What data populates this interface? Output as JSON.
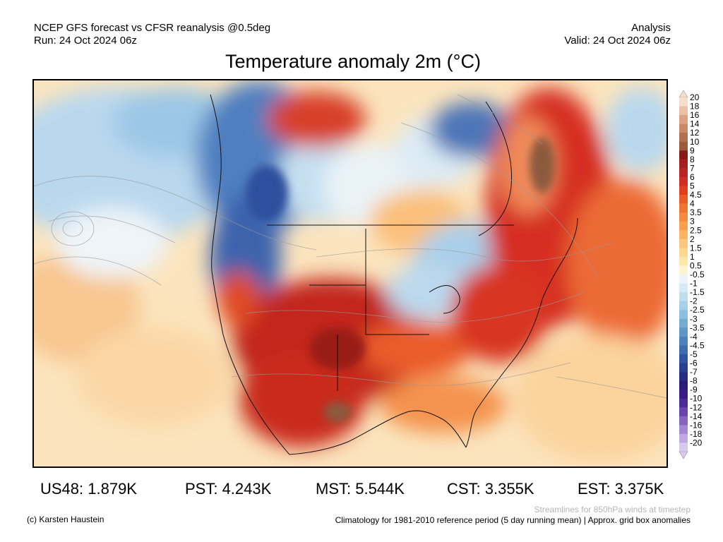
{
  "header": {
    "source_line": "NCEP GFS forecast vs CFSR reanalysis @0.5deg",
    "run_line": "Run: 24 Oct 2024 06z",
    "type_line": "Analysis",
    "valid_line": "Valid: 24 Oct 2024 06z",
    "title": "Temperature anomaly 2m (°C)"
  },
  "stats": [
    {
      "id": "us48",
      "text": "US48: 1.879K"
    },
    {
      "id": "pst",
      "text": "PST: 4.243K"
    },
    {
      "id": "mst",
      "text": "MST: 5.544K"
    },
    {
      "id": "cst",
      "text": "CST: 3.355K"
    },
    {
      "id": "est",
      "text": "EST: 3.375K"
    }
  ],
  "footer": {
    "copyright": "(c) Karsten Haustein",
    "streamlines_note": "Streamlines for 850hPa winds at timestep",
    "climatology_note": "Climatology for 1981-2010 reference period (5 day running mean) | Approx. grid box anomalies"
  },
  "colorbar": {
    "labels": [
      "20",
      "18",
      "16",
      "14",
      "12",
      "10",
      "9",
      "8",
      "7",
      "6",
      "5",
      "4.5",
      "4",
      "3.5",
      "3",
      "2.5",
      "2",
      "1.5",
      "1",
      "0.5",
      "-0.5",
      "-1",
      "-1.5",
      "-2",
      "-2.5",
      "-3",
      "-3.5",
      "-4",
      "-4.5",
      "-5",
      "-6",
      "-7",
      "-8",
      "-9",
      "-10",
      "-12",
      "-14",
      "-16",
      "-18",
      "-20"
    ],
    "colors": [
      "#f6dccb",
      "#ecc0a6",
      "#dca083",
      "#c98866",
      "#b36f4f",
      "#9c5a3b",
      "#8b1a1a",
      "#a31e1e",
      "#bb2424",
      "#d12c22",
      "#e0401e",
      "#ea5a22",
      "#f07432",
      "#f58a3e",
      "#f9a04e",
      "#fbb462",
      "#fcc77a",
      "#fdd892",
      "#fde6aa",
      "#fdf2d2",
      "#ecf4fa",
      "#d6eaf6",
      "#bfdef0",
      "#a6d0e9",
      "#8dc0e0",
      "#74acd4",
      "#5f97c8",
      "#4d82bc",
      "#3d6cb0",
      "#2f55a2",
      "#283f93",
      "#262b84",
      "#2a1c78",
      "#3a1a86",
      "#4e2a98",
      "#6a42ae",
      "#8763c2",
      "#a386d4",
      "#bfa9e3",
      "#d8caef"
    ]
  }
}
